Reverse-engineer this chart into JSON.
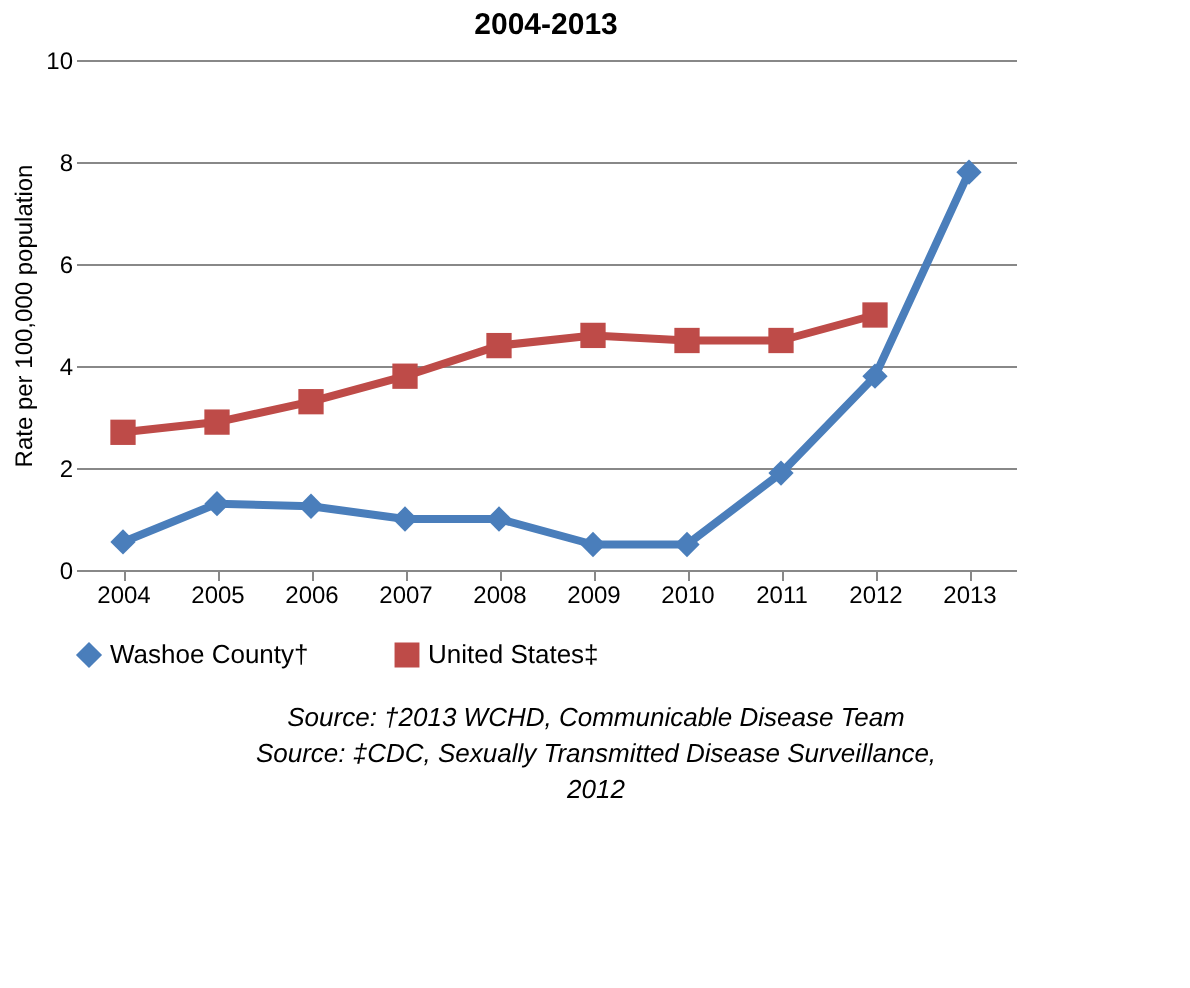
{
  "chart_data": {
    "type": "line",
    "title": "2004-2013",
    "ylabel": "Rate per 100,000 population",
    "categories": [
      "2004",
      "2005",
      "2006",
      "2007",
      "2008",
      "2009",
      "2010",
      "2011",
      "2012",
      "2013"
    ],
    "series": [
      {
        "name": "Washoe County†",
        "color": "#4a7ebb",
        "marker": "diamond",
        "values": [
          0.55,
          1.3,
          1.25,
          1.0,
          1.0,
          0.5,
          0.5,
          1.9,
          3.8,
          7.8
        ]
      },
      {
        "name": "United States‡",
        "color": "#be4b48",
        "marker": "square",
        "values": [
          2.7,
          2.9,
          3.3,
          3.8,
          4.4,
          4.6,
          4.5,
          4.5,
          5.0,
          null
        ]
      }
    ],
    "ylim": [
      0,
      10
    ],
    "yticks": [
      0,
      2,
      4,
      6,
      8,
      10
    ],
    "grid": "y",
    "legend": "bottom",
    "line_style": "solid",
    "annotations": [
      "Source: †2013 WCHD, Communicable Disease Team",
      "Source: ‡CDC, Sexually Transmitted Disease Surveillance, 2012"
    ]
  }
}
